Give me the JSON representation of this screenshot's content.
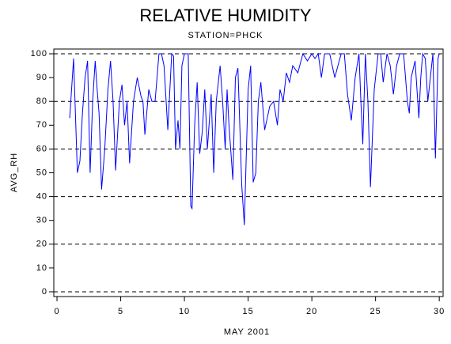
{
  "chart_data": {
    "type": "line",
    "title": "RELATIVE HUMIDITY",
    "subtitle": "STATION=PHCK",
    "x_label": "MAY 2001",
    "y_label": "AVG_RH",
    "x": [
      1.0,
      1.3,
      1.6,
      1.8,
      2.0,
      2.2,
      2.4,
      2.6,
      2.8,
      3.0,
      3.15,
      3.3,
      3.5,
      3.75,
      4.0,
      4.2,
      4.4,
      4.6,
      4.9,
      5.1,
      5.3,
      5.5,
      5.7,
      6.0,
      6.3,
      6.6,
      6.75,
      6.9,
      7.2,
      7.45,
      7.7,
      8.0,
      8.2,
      8.4,
      8.7,
      9.0,
      9.15,
      9.3,
      9.5,
      9.65,
      9.8,
      10.0,
      10.3,
      10.5,
      10.6,
      10.8,
      11.0,
      11.2,
      11.4,
      11.6,
      11.8,
      12.1,
      12.3,
      12.5,
      12.8,
      13.0,
      13.2,
      13.35,
      13.5,
      13.8,
      14.0,
      14.2,
      14.5,
      14.7,
      15.0,
      15.2,
      15.4,
      15.6,
      15.8,
      16.0,
      16.3,
      16.7,
      17.0,
      17.3,
      17.5,
      17.75,
      18.0,
      18.25,
      18.5,
      18.9,
      19.3,
      19.65,
      20.0,
      20.25,
      20.5,
      20.75,
      21.0,
      21.4,
      21.8,
      22.05,
      22.3,
      22.55,
      22.8,
      23.1,
      23.4,
      23.7,
      23.85,
      24.0,
      24.2,
      24.4,
      24.6,
      24.9,
      25.2,
      25.4,
      25.6,
      25.9,
      26.15,
      26.4,
      26.65,
      26.9,
      27.2,
      27.5,
      27.65,
      27.8,
      28.1,
      28.4,
      28.55,
      28.7,
      28.9,
      29.1,
      29.5,
      29.7,
      29.9,
      30.0
    ],
    "values": [
      73,
      98,
      50,
      55,
      75,
      90,
      97,
      50,
      80,
      97,
      85,
      75,
      43,
      60,
      85,
      97,
      80,
      51,
      80,
      87,
      70,
      80,
      54,
      80,
      90,
      82,
      80,
      66,
      85,
      80,
      80,
      100,
      100,
      95,
      68,
      100,
      99,
      60,
      72,
      60,
      95,
      100,
      100,
      36,
      35,
      70,
      88,
      58,
      67,
      85,
      60,
      83,
      50,
      80,
      95,
      80,
      60,
      85,
      70,
      47,
      90,
      94,
      45,
      28,
      85,
      95,
      46,
      50,
      80,
      88,
      68,
      78,
      80,
      70,
      85,
      80,
      92,
      88,
      95,
      92,
      100,
      97,
      100,
      98,
      100,
      90,
      100,
      100,
      90,
      95,
      100,
      100,
      83,
      72,
      90,
      100,
      80,
      62,
      100,
      80,
      44,
      85,
      100,
      100,
      88,
      100,
      95,
      83,
      95,
      100,
      100,
      80,
      75,
      90,
      97,
      73,
      90,
      100,
      98,
      80,
      100,
      56,
      98,
      100
    ],
    "color": "#0000ff",
    "xlim": [
      -0.25,
      30.3
    ],
    "ylim": [
      -2,
      102
    ],
    "xticks": [
      0,
      5,
      10,
      15,
      20,
      25,
      30
    ],
    "yticks": [
      0,
      10,
      20,
      30,
      40,
      50,
      60,
      70,
      80,
      90,
      100
    ],
    "grid_values": [
      0,
      20,
      40,
      60,
      80,
      100
    ]
  }
}
